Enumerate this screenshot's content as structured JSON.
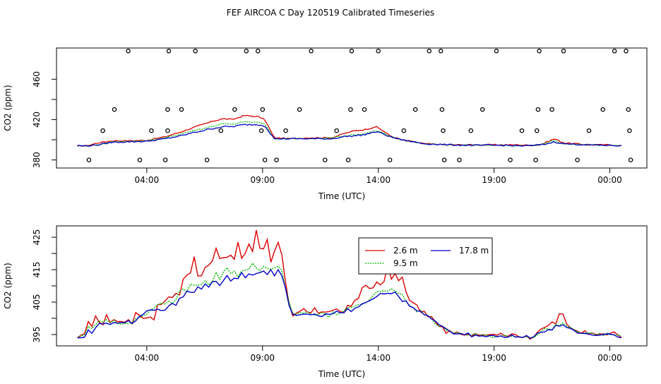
{
  "title": "FEF AIRCOA C  Day 120519  Calibrated Timeseries",
  "legend": [
    {
      "label": "2.6 m",
      "color": "#dd0000"
    },
    {
      "label": "9.5 m",
      "color": "#00bb00"
    },
    {
      "label": "17.8 m",
      "color": "#0000cc"
    }
  ],
  "chart_data": [
    {
      "type": "line",
      "title": "FEF AIRCOA C  Day 120519  Calibrated Timeseries",
      "xlabel": "Time (UTC)",
      "ylabel": "CO2 (ppm)",
      "xlim": [
        -0.9,
        24.6
      ],
      "ylim": [
        372,
        491
      ],
      "x_ticks": [
        3,
        8,
        13,
        18,
        23
      ],
      "x_tick_labels": [
        "04:00",
        "09:00",
        "14:00",
        "19:00",
        "00:00"
      ],
      "y_ticks": [
        380,
        400,
        420,
        440,
        460
      ],
      "y_tick_labels": [
        "380",
        "",
        "420",
        "",
        "460"
      ],
      "knots": {
        "x": [
          0,
          0.4,
          0.9,
          1.5,
          2.2,
          3.0,
          3.8,
          4.5,
          5.0,
          5.8,
          6.3,
          6.7,
          7.2,
          7.8,
          8.1,
          8.5,
          9.2,
          10,
          11,
          11.5,
          12,
          12.4,
          12.9,
          13.2,
          13.5,
          14,
          14.5,
          15,
          16,
          17,
          18,
          18.5,
          19,
          19.5,
          20,
          20.3,
          20.6,
          21,
          22,
          22.9,
          23.5
        ],
        "s26": [
          394,
          394,
          397,
          399,
          399,
          399.5,
          403,
          408,
          412,
          418,
          421,
          420,
          424,
          423,
          420,
          402,
          401,
          402,
          402,
          406,
          409,
          410,
          413,
          409,
          404,
          400,
          398,
          396,
          395,
          395,
          395,
          395,
          395,
          394.5,
          395,
          398,
          401,
          397,
          395,
          395,
          394
        ],
        "s95": [
          394,
          394,
          395,
          398,
          398.5,
          399,
          402,
          406,
          409,
          413,
          416,
          415,
          418,
          417,
          416,
          401,
          401,
          401,
          402,
          404,
          405,
          406,
          409,
          407,
          403,
          400,
          398,
          396,
          395,
          394.5,
          394.5,
          394.5,
          394,
          394,
          395,
          397,
          399,
          396,
          395,
          394.5,
          394
        ],
        "s178": [
          394,
          394,
          395,
          397.5,
          398,
          398.5,
          401,
          404,
          407,
          411,
          413,
          413,
          415,
          415,
          414,
          401,
          401,
          401,
          401,
          403,
          404,
          405,
          408,
          406,
          403,
          400,
          398,
          396,
          395,
          394.5,
          394.5,
          394.5,
          394,
          394,
          395,
          396,
          398,
          396,
          395,
          394.5,
          394
        ]
      },
      "noise": [
        0.6,
        0.6,
        0.7
      ],
      "points": [
        {
          "x": 0.5,
          "y": 380
        },
        {
          "x": 1.1,
          "y": 409
        },
        {
          "x": 1.6,
          "y": 430
        },
        {
          "x": 2.2,
          "y": 488
        },
        {
          "x": 2.7,
          "y": 380
        },
        {
          "x": 3.2,
          "y": 409
        },
        {
          "x": 3.8,
          "y": 380
        },
        {
          "x": 3.9,
          "y": 409
        },
        {
          "x": 3.9,
          "y": 430
        },
        {
          "x": 3.95,
          "y": 488
        },
        {
          "x": 4.5,
          "y": 430
        },
        {
          "x": 5.1,
          "y": 488
        },
        {
          "x": 5.6,
          "y": 380
        },
        {
          "x": 6.2,
          "y": 409
        },
        {
          "x": 6.8,
          "y": 430
        },
        {
          "x": 7.3,
          "y": 488
        },
        {
          "x": 7.8,
          "y": 488
        },
        {
          "x": 7.95,
          "y": 409
        },
        {
          "x": 8.0,
          "y": 430
        },
        {
          "x": 8.1,
          "y": 380
        },
        {
          "x": 8.6,
          "y": 380
        },
        {
          "x": 9.0,
          "y": 409
        },
        {
          "x": 9.6,
          "y": 430
        },
        {
          "x": 10.1,
          "y": 488
        },
        {
          "x": 10.7,
          "y": 380
        },
        {
          "x": 11.2,
          "y": 409
        },
        {
          "x": 11.7,
          "y": 380
        },
        {
          "x": 11.8,
          "y": 430
        },
        {
          "x": 11.85,
          "y": 488
        },
        {
          "x": 12.4,
          "y": 430
        },
        {
          "x": 13.0,
          "y": 488
        },
        {
          "x": 13.5,
          "y": 380
        },
        {
          "x": 14.1,
          "y": 409
        },
        {
          "x": 14.6,
          "y": 430
        },
        {
          "x": 15.2,
          "y": 488
        },
        {
          "x": 15.7,
          "y": 488
        },
        {
          "x": 15.75,
          "y": 430
        },
        {
          "x": 15.8,
          "y": 409
        },
        {
          "x": 15.85,
          "y": 380
        },
        {
          "x": 16.5,
          "y": 380
        },
        {
          "x": 17.0,
          "y": 409
        },
        {
          "x": 17.5,
          "y": 430
        },
        {
          "x": 18.1,
          "y": 488
        },
        {
          "x": 18.7,
          "y": 380
        },
        {
          "x": 19.2,
          "y": 409
        },
        {
          "x": 19.8,
          "y": 380
        },
        {
          "x": 19.85,
          "y": 409
        },
        {
          "x": 19.9,
          "y": 430
        },
        {
          "x": 19.95,
          "y": 488
        },
        {
          "x": 20.5,
          "y": 430
        },
        {
          "x": 21.0,
          "y": 488
        },
        {
          "x": 21.6,
          "y": 380
        },
        {
          "x": 22.1,
          "y": 409
        },
        {
          "x": 22.7,
          "y": 430
        },
        {
          "x": 23.2,
          "y": 488
        },
        {
          "x": 23.7,
          "y": 488
        },
        {
          "x": 23.8,
          "y": 430
        },
        {
          "x": 23.85,
          "y": 409
        },
        {
          "x": 23.9,
          "y": 380
        }
      ]
    },
    {
      "type": "line",
      "title": "",
      "xlabel": "Time (UTC)",
      "ylabel": "CO2 (ppm)",
      "xlim": [
        -0.9,
        24.6
      ],
      "ylim": [
        391.5,
        428.5
      ],
      "x_ticks": [
        3,
        8,
        13,
        18,
        23
      ],
      "x_tick_labels": [
        "04:00",
        "09:00",
        "14:00",
        "19:00",
        "00:00"
      ],
      "y_ticks": [
        395,
        400,
        405,
        410,
        415,
        420,
        425
      ],
      "y_tick_labels": [
        "395",
        "",
        "405",
        "",
        "415",
        "",
        "425"
      ],
      "series": [
        {
          "name": "2.6 m",
          "color": "#dd0000",
          "values": [
            394,
            394.8,
            395.3,
            399.0,
            397.5,
            400.7,
            398.8,
            398.0,
            401.1,
            398.7,
            399.6,
            399.0,
            399.0,
            398.8,
            399.6,
            398.3,
            401.8,
            400.9,
            400.0,
            400.1,
            400.4,
            399.5,
            404.2,
            404.3,
            405.3,
            406.6,
            406.4,
            407.7,
            407.2,
            412.1,
            413.3,
            414.0,
            419.0,
            413.1,
            413.1,
            415.7,
            416.4,
            417.7,
            421.6,
            418.4,
            418.7,
            418.8,
            419.5,
            418.2,
            423.5,
            418.5,
            420.1,
            422.9,
            420.6,
            427.2,
            421.6,
            421.4,
            424.3,
            417.3,
            420.7,
            423.4,
            419.6,
            411.4,
            404.3,
            400.7,
            401.6,
            402.2,
            403.0,
            401.9,
            401.7,
            403.3,
            401.6,
            402.0,
            401.9,
            402.1,
            402.5,
            402.9,
            402.1,
            401.7,
            404.0,
            403.7,
            405.6,
            406.1,
            409.4,
            410.2,
            409.2,
            409.4,
            411.2,
            410.3,
            411.3,
            416.4,
            412.1,
            413.8,
            411.6,
            412.7,
            408.2,
            405.5,
            404.8,
            404.1,
            401.9,
            402.2,
            400.5,
            400.5,
            399.0,
            397.5,
            397.4,
            395.4,
            396.2,
            395.3,
            395.8,
            395.1,
            394.8,
            395.1,
            394.5,
            395.3,
            394.8,
            394.9,
            394.8,
            395.0,
            395.1,
            394.8,
            395.4,
            394.6,
            394.5,
            395.2,
            395.0,
            394.2,
            394.1,
            394.6,
            393.6,
            394.3,
            395.7,
            396.7,
            397.2,
            397.8,
            398.9,
            398.3,
            401.4,
            401.3,
            398.3,
            397.1,
            396.5,
            396.0,
            395.4,
            396.2,
            395.0,
            395.5,
            395.0,
            395.1,
            395.2,
            394.9,
            395.4,
            395.8,
            394.9,
            394.1
          ]
        },
        {
          "name": "9.5 m",
          "color": "#00bb00",
          "values": [
            394,
            394.6,
            394.9,
            397.5,
            396.8,
            398.1,
            399.2,
            398.8,
            399.6,
            398.6,
            399.4,
            398.4,
            398.2,
            398.4,
            398.4,
            398.6,
            399.9,
            400.2,
            400.8,
            401.2,
            402.6,
            403.1,
            404.2,
            404.7,
            404.4,
            405.3,
            404.6,
            405.8,
            408.5,
            409.1,
            408.2,
            410.5,
            410.2,
            410.2,
            410.4,
            411.6,
            410.3,
            411.4,
            414.2,
            412.0,
            414.3,
            415.6,
            413.8,
            414.6,
            412.8,
            414.6,
            414.9,
            415.1,
            417.0,
            415.5,
            414.7,
            416.0,
            415.4,
            415.2,
            415.5,
            416.0,
            414.7,
            409.4,
            405.1,
            401.4,
            401.3,
            401.8,
            401.6,
            402.0,
            401.3,
            401.0,
            401.3,
            401.7,
            401.1,
            400.4,
            402.0,
            401.1,
            401.6,
            402.3,
            403.4,
            403.3,
            403.8,
            404.2,
            404.3,
            404.8,
            405.7,
            407.0,
            408.2,
            408.3,
            408.5,
            408.4,
            409.1,
            408.4,
            407.6,
            407.4,
            405.2,
            404.0,
            403.2,
            402.0,
            402.5,
            401.1,
            400.9,
            399.9,
            398.3,
            397.6,
            397.7,
            396.3,
            396.2,
            395.3,
            395.6,
            395.4,
            395.0,
            394.8,
            394.9,
            395.4,
            394.5,
            395.0,
            394.8,
            394.6,
            394.0,
            394.5,
            394.5,
            394.8,
            394.4,
            394.5,
            394.3,
            394.3,
            394.1,
            394.3,
            393.9,
            394.1,
            394.9,
            395.9,
            396.9,
            396.7,
            396.5,
            398.2,
            397.7,
            398.6,
            397.6,
            397.2,
            396.5,
            395.8,
            395.3,
            395.5,
            395.5,
            395.5,
            394.7,
            395.4,
            394.6,
            395.5,
            395.0,
            394.9,
            394.8,
            394.6
          ]
        },
        {
          "name": "17.8 m",
          "color": "#0000cc",
          "values": [
            394,
            394.0,
            394.2,
            396.4,
            395.4,
            397.1,
            398.4,
            398.3,
            398.5,
            398.1,
            398.7,
            398.5,
            398.7,
            398.6,
            399.3,
            398.4,
            399.2,
            400.6,
            401.2,
            402.3,
            402.6,
            402.5,
            402.8,
            402.4,
            402.5,
            403.8,
            404.6,
            404.0,
            406.2,
            406.6,
            408.4,
            408.0,
            408.0,
            409.7,
            409.0,
            410.6,
            409.6,
            411.3,
            411.4,
            410.1,
            411.6,
            413.2,
            411.5,
            412.4,
            412.2,
            414.1,
            412.5,
            413.7,
            413.3,
            413.8,
            414.1,
            414.6,
            413.5,
            415.0,
            413.1,
            415.0,
            413.1,
            409.4,
            403.9,
            401.3,
            400.9,
            401.1,
            401.3,
            401.3,
            401.1,
            401.3,
            400.8,
            400.5,
            401.4,
            401.2,
            401.4,
            402.2,
            401.7,
            401.7,
            403.0,
            402.1,
            403.1,
            403.5,
            404.5,
            404.9,
            405.4,
            406.0,
            406.7,
            407.7,
            407.5,
            407.7,
            407.6,
            408.1,
            406.7,
            405.2,
            405.4,
            403.7,
            403.3,
            402.3,
            402.2,
            401.1,
            400.8,
            399.8,
            399.2,
            398.1,
            397.5,
            396.8,
            396.0,
            395.2,
            395.2,
            395.3,
            394.9,
            395.5,
            394.3,
            394.8,
            394.5,
            394.6,
            394.3,
            394.7,
            394.7,
            394.3,
            394.6,
            394.1,
            394.2,
            394.9,
            394.2,
            394.3,
            394.1,
            394.7,
            393.9,
            394.3,
            395.4,
            395.7,
            395.8,
            396.5,
            396.4,
            397.8,
            397.6,
            398.0,
            397.2,
            396.9,
            396.3,
            395.4,
            395.4,
            395.3,
            395.2,
            394.8,
            394.7,
            394.8,
            395.0,
            395.2,
            395.1,
            394.9,
            394.2,
            394.0
          ]
        }
      ]
    }
  ]
}
